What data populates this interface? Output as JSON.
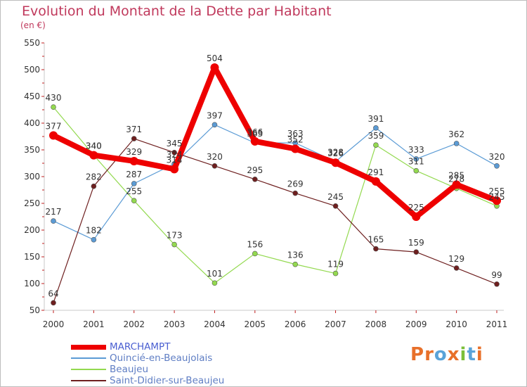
{
  "title": "Evolution du Montant de la Dette par Habitant",
  "unit": "(en €)",
  "brand": {
    "text": "Proxiti",
    "colors": [
      "#e8702a",
      "#e8702a",
      "#5aa3d8",
      "#e8702a",
      "#7bbf3a",
      "#5aa3d8",
      "#e8702a"
    ]
  },
  "chart_data": {
    "type": "line",
    "title": "Evolution du Montant de la Dette par Habitant",
    "ylabel": "(en €)",
    "xlabel": "",
    "x": [
      "2000",
      "2001",
      "2002",
      "2003",
      "2004",
      "2005",
      "2006",
      "2007",
      "2008",
      "2009",
      "2010",
      "2011"
    ],
    "ylim": [
      50,
      550
    ],
    "yticks": [
      50,
      100,
      150,
      200,
      250,
      300,
      350,
      400,
      450,
      500,
      550
    ],
    "grid": false,
    "legend_position": "bottom-left",
    "series": [
      {
        "name": "MARCHAMPT",
        "color": "#ee0000",
        "values": [
          377,
          340,
          329,
          314,
          504,
          366,
          352,
          326,
          291,
          225,
          285,
          255
        ]
      },
      {
        "name": "Quincié-en-Beaujolais",
        "color": "#5b9bd5",
        "values": [
          217,
          182,
          287,
          324,
          397,
          363,
          363,
          328,
          391,
          333,
          362,
          320
        ]
      },
      {
        "name": "Beaujeu",
        "color": "#93d94f",
        "values": [
          430,
          340,
          255,
          173,
          101,
          156,
          136,
          119,
          359,
          311,
          278,
          245
        ]
      },
      {
        "name": "Saint-Didier-sur-Beaujeu",
        "color": "#6e1f1f",
        "values": [
          64,
          282,
          371,
          345,
          320,
          295,
          269,
          245,
          165,
          159,
          129,
          99
        ]
      }
    ]
  }
}
